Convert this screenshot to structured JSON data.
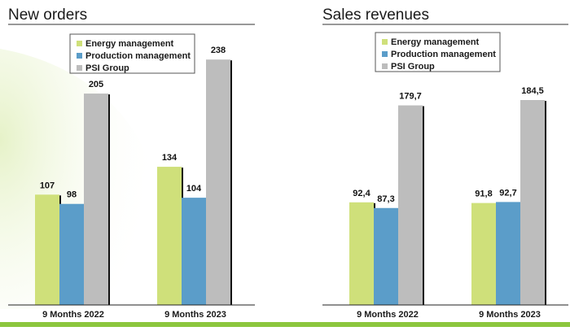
{
  "colors": {
    "energy": "#cfe07a",
    "production": "#5b9dc9",
    "psi": "#bdbdbd",
    "shadow": "#111111",
    "swoosh": "#eef6d8",
    "footer": "#8cc63e"
  },
  "chart_data": [
    {
      "type": "bar",
      "title": "New orders",
      "categories": [
        "9 Months 2022",
        "9 Months 2023"
      ],
      "series": [
        {
          "name": "Energy management",
          "values": [
            107,
            134
          ],
          "labels": [
            "107",
            "134"
          ]
        },
        {
          "name": "Production management",
          "values": [
            98,
            104
          ],
          "labels": [
            "98",
            "104"
          ]
        },
        {
          "name": "PSI Group",
          "values": [
            205,
            238
          ],
          "labels": [
            "205",
            "238"
          ]
        }
      ],
      "ylim": [
        0,
        238
      ],
      "grid": false,
      "legend": "top"
    },
    {
      "type": "bar",
      "title": "Sales revenues",
      "categories": [
        "9 Months 2022",
        "9 Months 2023"
      ],
      "series": [
        {
          "name": "Energy management",
          "values": [
            92.4,
            91.8
          ],
          "labels": [
            "92,4",
            "91,8"
          ]
        },
        {
          "name": "Production management",
          "values": [
            87.3,
            92.7
          ],
          "labels": [
            "87,3",
            "92,7"
          ]
        },
        {
          "name": "PSI Group",
          "values": [
            179.7,
            184.5
          ],
          "labels": [
            "179,7",
            "184,5"
          ]
        }
      ],
      "ylim": [
        0,
        184.5
      ],
      "grid": false,
      "legend": "top"
    }
  ]
}
